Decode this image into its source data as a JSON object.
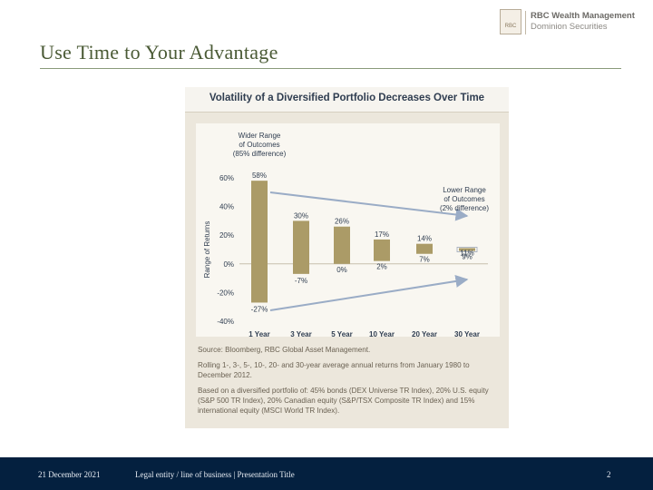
{
  "slide": {
    "title": "Use Time to Your Advantage"
  },
  "logo": {
    "line1": "RBC Wealth Management",
    "line2": "Dominion Securities",
    "mark_text": "RBC"
  },
  "footer": {
    "date": "21 December 2021",
    "entity": "Legal entity / line of business | Presentation Title",
    "page": "2"
  },
  "colors": {
    "bar": "#ab9b67",
    "arrow": "#9aacc6",
    "title": "#2f3d50"
  },
  "chart_data": {
    "type": "bar",
    "title": "Volatility of a Diversified Portfolio Decreases Over Time",
    "ylabel": "Range of Returns",
    "ylim": [
      -40,
      60
    ],
    "yticks": [
      60,
      40,
      20,
      0,
      -20,
      -40
    ],
    "ytick_labels": [
      "60%",
      "40%",
      "20%",
      "0%",
      "-20%",
      "-40%"
    ],
    "categories": [
      "1 Year",
      "3 Year",
      "5 Year",
      "10 Year",
      "20 Year",
      "30 Year"
    ],
    "highs": [
      58,
      30,
      26,
      17,
      14,
      11
    ],
    "lows": [
      -27,
      -7,
      0,
      2,
      7,
      9
    ],
    "high_labels": [
      "58%",
      "30%",
      "26%",
      "17%",
      "14%",
      "11%"
    ],
    "low_labels": [
      "-27%",
      "-7%",
      "0%",
      "2%",
      "7%",
      "9%"
    ],
    "annotations": {
      "wider": [
        "Wider Range",
        "of Outcomes",
        "(85% difference)"
      ],
      "lower": [
        "Lower Range",
        "of Outcomes",
        "(2% difference)"
      ]
    },
    "source": "Source: Bloomberg, RBC Global Asset Management.",
    "note1": "Rolling 1-, 3-, 5-, 10-, 20- and 30-year average annual returns from January 1980 to December 2012.",
    "note2": "Based on a diversified portfolio of: 45% bonds (DEX Universe TR Index), 20% U.S. equity (S&P 500 TR Index), 20% Canadian equity (S&P/TSX Composite TR Index) and 15% international equity (MSCI World TR Index)."
  }
}
